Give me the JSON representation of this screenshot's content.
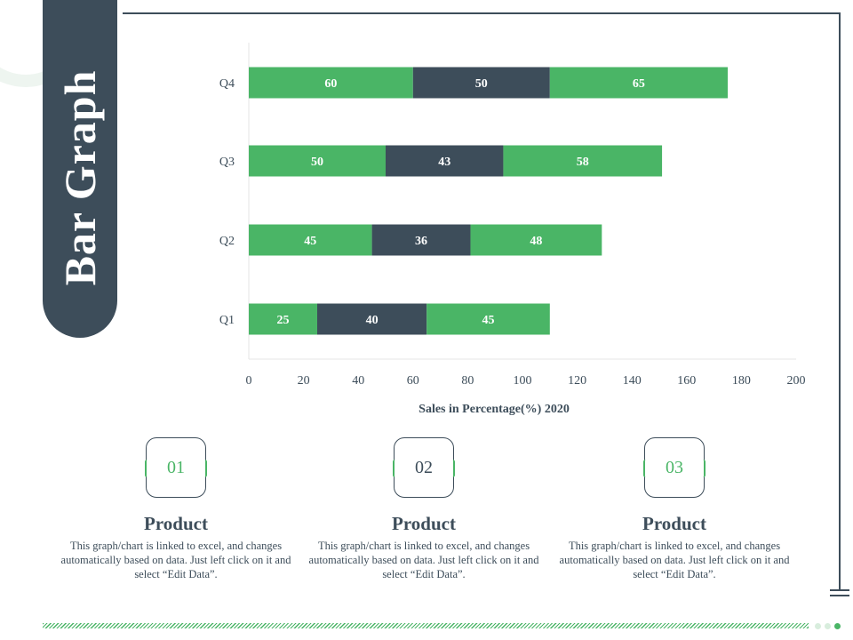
{
  "page_title": "Bar Graph",
  "colors": {
    "green": "#4ab566",
    "dark": "#3d4d5a",
    "grid": "#e6e6e6",
    "light_dot": "#d8eddd"
  },
  "chart_data": {
    "type": "bar",
    "orientation": "horizontal",
    "stacked": true,
    "categories": [
      "Q1",
      "Q2",
      "Q3",
      "Q4"
    ],
    "series": [
      {
        "values": [
          25,
          45,
          50,
          60
        ],
        "color": "#4ab566"
      },
      {
        "values": [
          40,
          36,
          43,
          50
        ],
        "color": "#3d4d5a"
      },
      {
        "values": [
          45,
          48,
          58,
          65
        ],
        "color": "#4ab566"
      }
    ],
    "xlabel": "Sales in Percentage(%) 2020",
    "ylabel": "",
    "xlim": [
      0,
      200
    ],
    "xticks": [
      0,
      20,
      40,
      60,
      80,
      100,
      120,
      140,
      160,
      180,
      200
    ],
    "data_labels": true,
    "grid": false,
    "legend": "none"
  },
  "cards": [
    {
      "number": "01",
      "number_color": "#4ab566",
      "title": "Product",
      "description": "This graph/chart is linked to excel, and changes automatically based on data. Just left click on it and select “Edit Data”."
    },
    {
      "number": "02",
      "number_color": "#3d4d5a",
      "title": "Product",
      "description": "This graph/chart is linked to excel, and changes automatically based on data. Just left click on it and select “Edit Data”."
    },
    {
      "number": "03",
      "number_color": "#4ab566",
      "title": "Product",
      "description": "This graph/chart is linked to excel, and changes automatically based on data. Just left click on it and select “Edit Data”."
    }
  ]
}
